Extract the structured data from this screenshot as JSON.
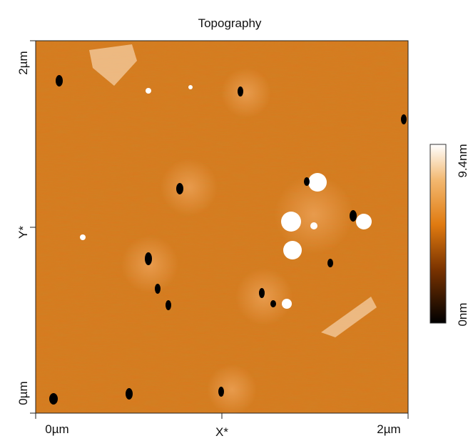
{
  "title": "Topography",
  "x_axis": {
    "label": "X*",
    "ticks": [
      "0µm",
      "2µm"
    ]
  },
  "y_axis": {
    "label": "Y*",
    "ticks": [
      "0µm",
      "2µm"
    ]
  },
  "colorbar": {
    "min_label": "0nm",
    "max_label": "9.4nm"
  }
}
